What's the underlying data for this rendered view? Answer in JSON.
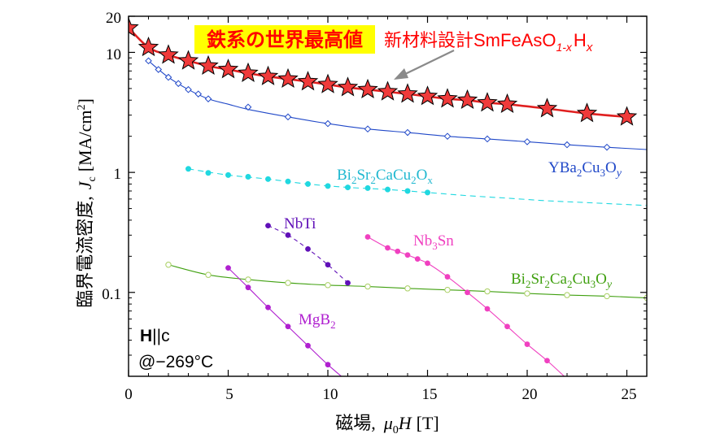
{
  "chart_data": {
    "type": "line",
    "xlabel_main": "磁場,",
    "xlabel_var": "μ",
    "xlabel_sub": "0",
    "xlabel_var2": "H",
    "xlabel_unit": "[T]",
    "ylabel_main": "臨界電流密度,",
    "ylabel_var": "J",
    "ylabel_sub": "c",
    "ylabel_unit_pre": "[MA/cm",
    "ylabel_unit_sup": "2",
    "ylabel_unit_post": "]",
    "xlim": [
      0,
      26
    ],
    "ylim": [
      0.02,
      20
    ],
    "yscale": "log",
    "x_ticks": [
      0,
      5,
      10,
      15,
      20,
      25
    ],
    "x_tick_labels": [
      "0",
      "5",
      "10",
      "15",
      "20",
      "25"
    ],
    "y_ticks": [
      0.1,
      1,
      10,
      20
    ],
    "y_tick_labels": [
      "0.1",
      "1",
      "10",
      "20"
    ],
    "highlight": {
      "title": "鉄系の世界最高値",
      "subtitle_prefix": "新材料設計SmFeAsO",
      "subtitle_sub": "1-x",
      "subtitle_mid": "H",
      "subtitle_sub2": "x",
      "color": "#ff0000",
      "background": "#ffff00"
    },
    "conditions": {
      "field_bold": "H",
      "field_rest": "||c",
      "temperature": "@−269°C"
    },
    "series": [
      {
        "name": "SmFeAsO1-xHx",
        "color": "#e02020",
        "marker": "star",
        "line_style": "solid",
        "x": [
          0,
          1,
          2,
          3,
          4,
          5,
          6,
          7,
          8,
          9,
          10,
          11,
          12,
          13,
          14,
          15,
          16,
          17,
          18,
          19,
          21,
          23,
          25
        ],
        "values": [
          16.0,
          11.0,
          9.5,
          8.5,
          7.7,
          7.2,
          6.7,
          6.3,
          6.0,
          5.7,
          5.4,
          5.1,
          4.9,
          4.7,
          4.5,
          4.3,
          4.1,
          4.0,
          3.8,
          3.7,
          3.4,
          3.1,
          2.9
        ]
      },
      {
        "name": "YBa2Cu3Oy",
        "color": "#2048c8",
        "marker": "diamond",
        "line_style": "solid",
        "x": [
          1,
          1.5,
          2,
          2.5,
          3,
          3.5,
          4,
          6,
          8,
          10,
          12,
          14,
          16,
          18,
          20,
          22,
          24
        ],
        "values": [
          8.5,
          7.2,
          6.2,
          5.5,
          4.9,
          4.5,
          4.1,
          3.5,
          2.9,
          2.55,
          2.3,
          2.15,
          2.0,
          1.9,
          1.8,
          1.7,
          1.62
        ],
        "curve_x": [
          1,
          2,
          3,
          4,
          5,
          6,
          8,
          10,
          12,
          14,
          16,
          18,
          20,
          22,
          24,
          26
        ],
        "curve_values": [
          8.5,
          6.2,
          4.9,
          4.1,
          3.7,
          3.35,
          2.9,
          2.55,
          2.3,
          2.15,
          2.0,
          1.9,
          1.8,
          1.7,
          1.62,
          1.55
        ],
        "label_main": "YBa",
        "label_sub1": "2",
        "label_mid": "Cu",
        "label_sub2": "3",
        "label_end": "O",
        "label_sub3": "y"
      },
      {
        "name": "Bi2Sr2CaCu2Ox",
        "color": "#20d8e0",
        "marker": "circle-filled",
        "line_style": "dashed",
        "x": [
          3,
          4,
          5,
          6,
          7,
          8,
          9,
          10,
          11,
          12,
          13,
          14,
          15
        ],
        "values": [
          1.07,
          0.99,
          0.95,
          0.92,
          0.88,
          0.84,
          0.8,
          0.77,
          0.75,
          0.74,
          0.72,
          0.7,
          0.68
        ],
        "curve_x": [
          3,
          5,
          7,
          9,
          11,
          13,
          15,
          17,
          19,
          21,
          23,
          26
        ],
        "curve_values": [
          1.07,
          0.95,
          0.88,
          0.8,
          0.75,
          0.72,
          0.68,
          0.64,
          0.61,
          0.58,
          0.56,
          0.53
        ],
        "label_main": "Bi",
        "label_sub1": "2",
        "label_mid": "Sr",
        "label_sub2": "2",
        "label_mid2": "CaCu",
        "label_sub3": "2",
        "label_end": "O",
        "label_sub4": "x"
      },
      {
        "name": "NbTi",
        "color": "#6010b8",
        "marker": "circle-filled",
        "line_style": "dashed",
        "x": [
          7,
          8,
          9,
          10,
          11
        ],
        "values": [
          0.36,
          0.3,
          0.23,
          0.17,
          0.12
        ],
        "label_main": "NbTi"
      },
      {
        "name": "Nb3Sn",
        "color": "#f040c0",
        "marker": "circle-filled",
        "line_style": "solid",
        "x": [
          12,
          13,
          13.5,
          14,
          14.5,
          15,
          16,
          17,
          18,
          19,
          20,
          21,
          22
        ],
        "values": [
          0.29,
          0.235,
          0.22,
          0.205,
          0.19,
          0.175,
          0.135,
          0.1,
          0.073,
          0.052,
          0.037,
          0.027,
          0.019
        ],
        "label_main": "Nb",
        "label_sub1": "3",
        "label_end": "Sn"
      },
      {
        "name": "Bi2Sr2Ca2Cu3Oy",
        "color": "#40a010",
        "marker": "circle-open",
        "line_style": "solid",
        "x": [
          2,
          4,
          6,
          8,
          10,
          12,
          14,
          16,
          18,
          20,
          22,
          24,
          26
        ],
        "values": [
          0.17,
          0.14,
          0.128,
          0.12,
          0.115,
          0.112,
          0.108,
          0.105,
          0.102,
          0.098,
          0.095,
          0.093,
          0.09
        ],
        "label_main": "Bi",
        "label_sub1": "2",
        "label_mid": "Sr",
        "label_sub2": "2",
        "label_mid2": "Ca",
        "label_sub3": "2",
        "label_mid3": "Cu",
        "label_sub4": "3",
        "label_end": "O",
        "label_sub5": "y"
      },
      {
        "name": "MgB2",
        "color": "#b020d0",
        "marker": "circle-filled",
        "line_style": "solid",
        "x": [
          5,
          6,
          7,
          8,
          9,
          10,
          11
        ],
        "values": [
          0.16,
          0.11,
          0.075,
          0.052,
          0.036,
          0.025,
          0.018
        ],
        "label_main": "MgB",
        "label_sub1": "2"
      }
    ]
  }
}
